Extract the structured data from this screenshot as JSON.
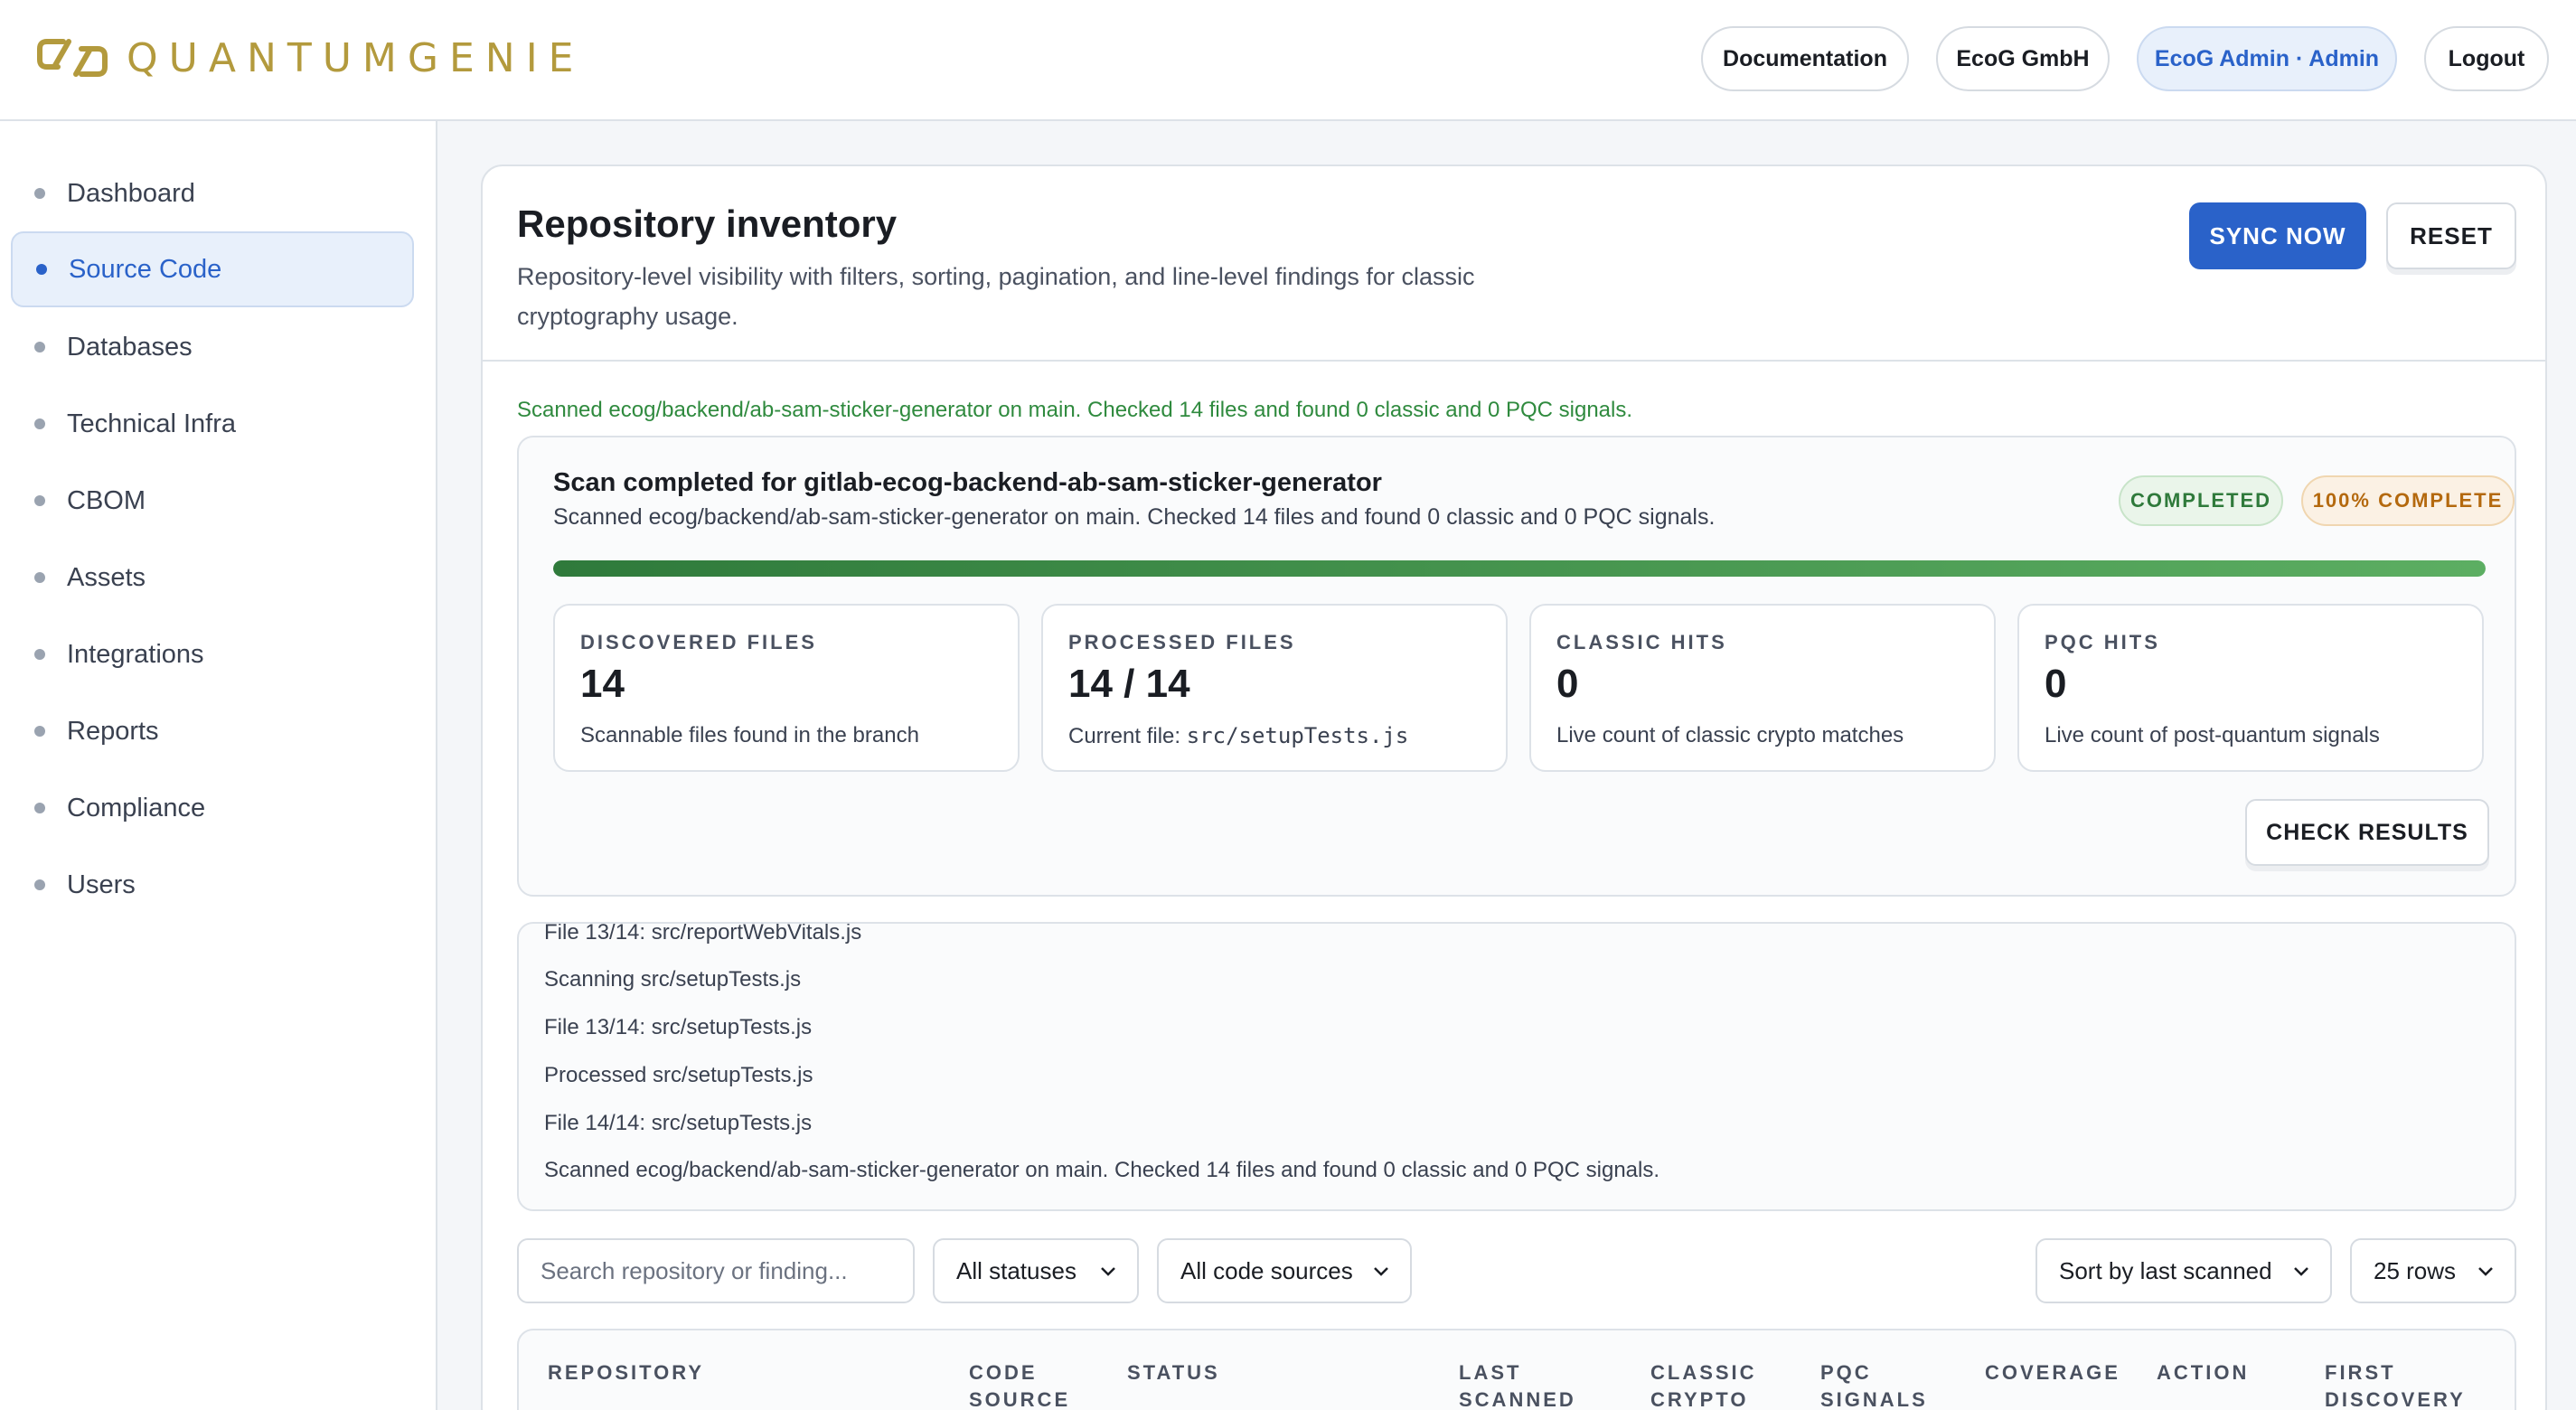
{
  "header": {
    "brand": "QUANTUMGENIE",
    "buttons": {
      "documentation": "Documentation",
      "org": "EcoG GmbH",
      "user": "EcoG Admin · Admin",
      "logout": "Logout"
    }
  },
  "sidebar": {
    "items": [
      {
        "label": "Dashboard"
      },
      {
        "label": "Source Code"
      },
      {
        "label": "Databases"
      },
      {
        "label": "Technical Infra"
      },
      {
        "label": "CBOM"
      },
      {
        "label": "Assets"
      },
      {
        "label": "Integrations"
      },
      {
        "label": "Reports"
      },
      {
        "label": "Compliance"
      },
      {
        "label": "Users"
      }
    ],
    "active": "Source Code"
  },
  "main": {
    "title": "Repository inventory",
    "subtitle": "Repository-level visibility with filters, sorting, pagination, and line-level findings for classic cryptography usage.",
    "sync_label": "SYNC NOW",
    "reset_label": "RESET",
    "scan_message": "Scanned ecog/backend/ab-sam-sticker-generator on main. Checked 14 files and found 0 classic and 0 PQC signals."
  },
  "scan": {
    "title": "Scan completed for gitlab-ecog-backend-ab-sam-sticker-generator",
    "description": "Scanned ecog/backend/ab-sam-sticker-generator on main. Checked 14 files and found 0 classic and 0 PQC signals.",
    "status_badge": "COMPLETED",
    "percent_badge": "100% COMPLETE",
    "progress": 1.0,
    "stats": {
      "discovered": {
        "label": "DISCOVERED FILES",
        "value": "14",
        "hint": "Scannable files found in the branch"
      },
      "processed": {
        "label": "PROCESSED FILES",
        "value": "14 / 14",
        "hint_prefix": "Current file: ",
        "current_file": "src/setupTests.js"
      },
      "classic": {
        "label": "CLASSIC HITS",
        "value": "0",
        "hint": "Live count of classic crypto matches"
      },
      "pqc": {
        "label": "PQC HITS",
        "value": "0",
        "hint": "Live count of post-quantum signals"
      }
    },
    "check_label": "CHECK RESULTS"
  },
  "log": {
    "lines": [
      "File 13/14: src/reportWebVitals.js",
      "Scanning src/setupTests.js",
      "File 13/14: src/setupTests.js",
      "Processed src/setupTests.js",
      "File 14/14: src/setupTests.js",
      "Scanned ecog/backend/ab-sam-sticker-generator on main. Checked 14 files and found 0 classic and 0 PQC signals."
    ]
  },
  "filters": {
    "search_placeholder": "Search repository or finding...",
    "status": "All statuses",
    "source": "All code sources",
    "sort": "Sort by last scanned",
    "rows": "25 rows"
  },
  "table": {
    "columns": {
      "repository": "REPOSITORY",
      "code_source_1": "CODE",
      "code_source_2": "SOURCE",
      "status": "STATUS",
      "last_scanned_1": "LAST",
      "last_scanned_2": "SCANNED",
      "classic_1": "CLASSIC",
      "classic_2": "CRYPTO",
      "pqc_1": "PQC",
      "pqc_2": "SIGNALS",
      "coverage": "COVERAGE",
      "action": "ACTION",
      "first_discovery_1": "FIRST",
      "first_discovery_2": "DISCOVERY"
    }
  },
  "colors": {
    "accent": "#2a62c9",
    "success": "#2f7a3b",
    "warning": "#b4690e",
    "brand": "#b39a3d"
  }
}
